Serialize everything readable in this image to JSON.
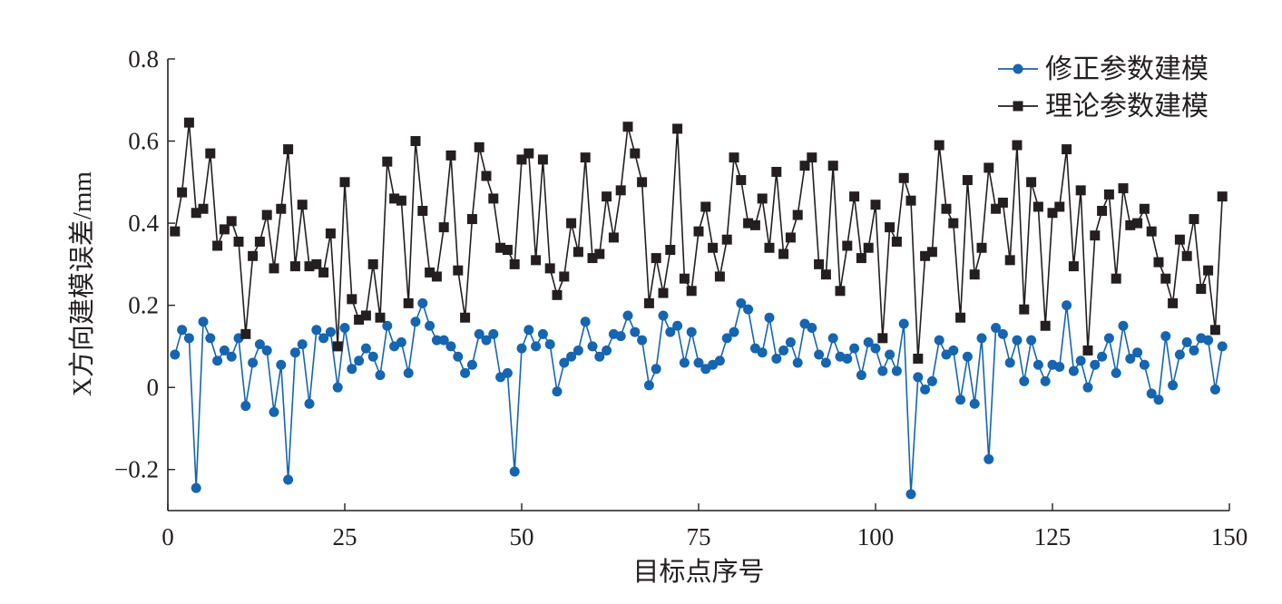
{
  "chart_data": {
    "type": "line",
    "title": "",
    "xlabel": "目标点序号",
    "ylabel": "X方向建模误差/mm",
    "xlim": [
      0,
      150
    ],
    "ylim": [
      -0.3,
      0.8
    ],
    "xticks": [
      0,
      25,
      50,
      75,
      100,
      125,
      150
    ],
    "yticks": [
      -0.2,
      0,
      0.2,
      0.4,
      0.6,
      0.8
    ],
    "xtick_labels": [
      "0",
      "25",
      "50",
      "75",
      "100",
      "125",
      "150"
    ],
    "ytick_labels": [
      "−0.2",
      "0",
      "0.2",
      "0.4",
      "0.6",
      "0.8"
    ],
    "grid": false,
    "legend_position": "top-right",
    "series": [
      {
        "name": "修正参数建模",
        "marker": "circle",
        "color": "#1565b0",
        "x": [
          1,
          2,
          3,
          4,
          5,
          6,
          7,
          8,
          9,
          10,
          11,
          12,
          13,
          14,
          15,
          16,
          17,
          18,
          19,
          20,
          21,
          22,
          23,
          24,
          25,
          26,
          27,
          28,
          29,
          30,
          31,
          32,
          33,
          34,
          35,
          36,
          37,
          38,
          39,
          40,
          41,
          42,
          43,
          44,
          45,
          46,
          47,
          48,
          49,
          50,
          51,
          52,
          53,
          54,
          55,
          56,
          57,
          58,
          59,
          60,
          61,
          62,
          63,
          64,
          65,
          66,
          67,
          68,
          69,
          70,
          71,
          72,
          73,
          74,
          75,
          76,
          77,
          78,
          79,
          80,
          81,
          82,
          83,
          84,
          85,
          86,
          87,
          88,
          89,
          90,
          91,
          92,
          93,
          94,
          95,
          96,
          97,
          98,
          99,
          100,
          101,
          102,
          103,
          104,
          105,
          106,
          107,
          108,
          109,
          110,
          111,
          112,
          113,
          114,
          115,
          116,
          117,
          118,
          119,
          120,
          121,
          122,
          123,
          124,
          125,
          126,
          127,
          128,
          129,
          130,
          131,
          132,
          133,
          134,
          135,
          136,
          137,
          138,
          139,
          140,
          141,
          142,
          143,
          144,
          145,
          146,
          147,
          148,
          149
        ],
        "values": [
          0.08,
          0.14,
          0.12,
          -0.245,
          0.16,
          0.12,
          0.065,
          0.09,
          0.075,
          0.12,
          -0.045,
          0.06,
          0.105,
          0.09,
          -0.06,
          0.055,
          -0.225,
          0.085,
          0.105,
          -0.04,
          0.14,
          0.12,
          0.135,
          0,
          0.145,
          0.045,
          0.065,
          0.095,
          0.075,
          0.03,
          0.15,
          0.1,
          0.11,
          0.035,
          0.16,
          0.205,
          0.15,
          0.115,
          0.115,
          0.1,
          0.075,
          0.035,
          0.055,
          0.13,
          0.115,
          0.13,
          0.025,
          0.035,
          -0.205,
          0.095,
          0.14,
          0.1,
          0.13,
          0.105,
          -0.01,
          0.06,
          0.075,
          0.09,
          0.16,
          0.1,
          0.075,
          0.09,
          0.13,
          0.125,
          0.175,
          0.135,
          0.115,
          0.005,
          0.045,
          0.175,
          0.135,
          0.15,
          0.06,
          0.135,
          0.06,
          0.045,
          0.055,
          0.065,
          0.12,
          0.135,
          0.205,
          0.19,
          0.095,
          0.085,
          0.17,
          0.07,
          0.09,
          0.11,
          0.06,
          0.155,
          0.145,
          0.08,
          0.06,
          0.12,
          0.075,
          0.07,
          0.095,
          0.03,
          0.11,
          0.095,
          0.04,
          0.08,
          0.04,
          0.155,
          -0.26,
          0.025,
          -0.005,
          0.015,
          0.115,
          0.08,
          0.09,
          -0.03,
          0.075,
          -0.04,
          0.12,
          -0.175,
          0.145,
          0.13,
          0.06,
          0.115,
          0.015,
          0.115,
          0.055,
          0.015,
          0.055,
          0.05,
          0.2,
          0.04,
          0.065,
          0,
          0.055,
          0.075,
          0.12,
          0.035,
          0.15,
          0.07,
          0.085,
          0.055,
          -0.015,
          -0.03,
          0.125,
          0.005,
          0.08,
          0.11,
          0.09,
          0.12,
          0.115,
          -0.005,
          0.1
        ]
      },
      {
        "name": "理论参数建模",
        "marker": "square",
        "color": "#231f20",
        "x": [
          1,
          2,
          3,
          4,
          5,
          6,
          7,
          8,
          9,
          10,
          11,
          12,
          13,
          14,
          15,
          16,
          17,
          18,
          19,
          20,
          21,
          22,
          23,
          24,
          25,
          26,
          27,
          28,
          29,
          30,
          31,
          32,
          33,
          34,
          35,
          36,
          37,
          38,
          39,
          40,
          41,
          42,
          43,
          44,
          45,
          46,
          47,
          48,
          49,
          50,
          51,
          52,
          53,
          54,
          55,
          56,
          57,
          58,
          59,
          60,
          61,
          62,
          63,
          64,
          65,
          66,
          67,
          68,
          69,
          70,
          71,
          72,
          73,
          74,
          75,
          76,
          77,
          78,
          79,
          80,
          81,
          82,
          83,
          84,
          85,
          86,
          87,
          88,
          89,
          90,
          91,
          92,
          93,
          94,
          95,
          96,
          97,
          98,
          99,
          100,
          101,
          102,
          103,
          104,
          105,
          106,
          107,
          108,
          109,
          110,
          111,
          112,
          113,
          114,
          115,
          116,
          117,
          118,
          119,
          120,
          121,
          122,
          123,
          124,
          125,
          126,
          127,
          128,
          129,
          130,
          131,
          132,
          133,
          134,
          135,
          136,
          137,
          138,
          139,
          140,
          141,
          142,
          143,
          144,
          145,
          146,
          147,
          148,
          149
        ],
        "values": [
          0.38,
          0.475,
          0.645,
          0.425,
          0.435,
          0.57,
          0.345,
          0.385,
          0.405,
          0.355,
          0.13,
          0.32,
          0.355,
          0.42,
          0.29,
          0.435,
          0.58,
          0.295,
          0.445,
          0.295,
          0.3,
          0.28,
          0.375,
          0.1,
          0.5,
          0.215,
          0.165,
          0.175,
          0.3,
          0.17,
          0.55,
          0.46,
          0.455,
          0.205,
          0.6,
          0.43,
          0.28,
          0.27,
          0.39,
          0.565,
          0.285,
          0.17,
          0.41,
          0.585,
          0.515,
          0.46,
          0.34,
          0.335,
          0.3,
          0.555,
          0.57,
          0.31,
          0.555,
          0.29,
          0.225,
          0.27,
          0.4,
          0.33,
          0.56,
          0.315,
          0.325,
          0.465,
          0.365,
          0.48,
          0.635,
          0.57,
          0.5,
          0.205,
          0.315,
          0.23,
          0.335,
          0.63,
          0.265,
          0.235,
          0.38,
          0.44,
          0.34,
          0.27,
          0.36,
          0.56,
          0.505,
          0.4,
          0.395,
          0.46,
          0.34,
          0.525,
          0.325,
          0.365,
          0.42,
          0.54,
          0.56,
          0.3,
          0.275,
          0.54,
          0.235,
          0.345,
          0.465,
          0.315,
          0.34,
          0.445,
          0.12,
          0.39,
          0.355,
          0.51,
          0.455,
          0.07,
          0.32,
          0.33,
          0.59,
          0.435,
          0.4,
          0.17,
          0.505,
          0.275,
          0.34,
          0.535,
          0.435,
          0.45,
          0.31,
          0.59,
          0.19,
          0.5,
          0.44,
          0.15,
          0.425,
          0.44,
          0.58,
          0.295,
          0.48,
          0.09,
          0.37,
          0.43,
          0.47,
          0.265,
          0.485,
          0.395,
          0.4,
          0.435,
          0.38,
          0.305,
          0.265,
          0.205,
          0.36,
          0.32,
          0.41,
          0.24,
          0.285,
          0.14,
          0.465
        ]
      }
    ]
  }
}
